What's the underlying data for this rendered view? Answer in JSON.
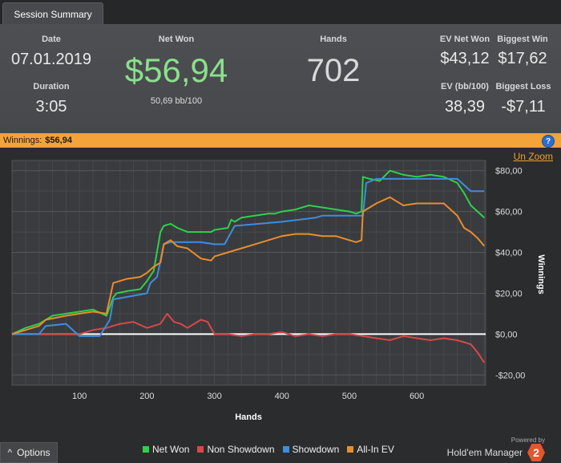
{
  "tab": {
    "label": "Session Summary"
  },
  "summary": {
    "date_label": "Date",
    "date": "07.01.2019",
    "duration_label": "Duration",
    "duration": "3:05",
    "net_won_label": "Net Won",
    "net_won": "$56,94",
    "bb100": "50,69 bb/100",
    "hands_label": "Hands",
    "hands": "702",
    "ev_net_won_label": "EV Net Won",
    "ev_net_won": "$43,12",
    "biggest_win_label": "Biggest Win",
    "biggest_win": "$17,62",
    "ev_bb100_label": "EV (bb/100)",
    "ev_bb100": "38,39",
    "biggest_loss_label": "Biggest Loss",
    "biggest_loss": "-$7,11"
  },
  "banner": {
    "label": "Winnings:",
    "value": "$56,94",
    "help": "?"
  },
  "chart_controls": {
    "unzoom": "Un Zoom"
  },
  "chart_data": {
    "type": "line",
    "xlabel": "Hands",
    "ylabel": "Winnings",
    "xlim": [
      0,
      702
    ],
    "ylim": [
      -25,
      85
    ],
    "x_ticks": [
      100,
      200,
      300,
      400,
      500,
      600
    ],
    "y_ticks": [
      -20,
      0,
      20,
      40,
      60,
      80
    ],
    "y_tick_labels": [
      "-$20,00",
      "$0,00",
      "$20,00",
      "$40,00",
      "$60,00",
      "$80,00"
    ],
    "grid": true,
    "series": [
      {
        "name": "Net Won",
        "color": "#2fd04a",
        "x": [
          0,
          20,
          40,
          60,
          80,
          100,
          120,
          140,
          150,
          155,
          170,
          190,
          200,
          210,
          220,
          225,
          235,
          245,
          260,
          280,
          295,
          300,
          320,
          325,
          330,
          340,
          360,
          380,
          390,
          400,
          420,
          440,
          460,
          480,
          500,
          510,
          518,
          520,
          530,
          545,
          560,
          580,
          600,
          620,
          640,
          660,
          670,
          680,
          690,
          700
        ],
        "y": [
          0,
          3,
          5,
          9,
          10,
          11,
          12,
          9,
          18,
          20,
          21,
          22,
          26,
          31,
          50,
          53,
          54,
          52,
          50,
          50,
          50,
          51,
          52,
          56,
          55,
          57,
          58,
          59,
          59,
          60,
          61,
          63,
          62,
          61,
          60,
          59,
          60,
          77,
          76,
          75,
          80,
          78,
          77,
          78,
          77,
          74,
          69,
          63,
          60,
          56.94
        ]
      },
      {
        "name": "Non Showdown",
        "color": "#d84848",
        "x": [
          0,
          50,
          100,
          120,
          140,
          160,
          180,
          200,
          220,
          230,
          240,
          250,
          260,
          280,
          290,
          300,
          320,
          340,
          360,
          380,
          400,
          420,
          440,
          460,
          480,
          500,
          520,
          540,
          560,
          580,
          600,
          620,
          640,
          660,
          680,
          690,
          700
        ],
        "y": [
          0,
          0,
          0,
          2,
          3,
          5,
          6,
          3,
          5,
          10,
          6,
          5,
          3,
          7,
          6,
          0,
          0,
          -1,
          0,
          0,
          1,
          -1,
          0,
          -1,
          0,
          0,
          -1,
          -2,
          -3,
          -1,
          -2,
          -3,
          -2,
          -3,
          -5,
          -9,
          -14
        ]
      },
      {
        "name": "Showdown",
        "color": "#3b8ee0",
        "x": [
          0,
          40,
          50,
          80,
          100,
          130,
          145,
          150,
          200,
          205,
          215,
          225,
          235,
          260,
          280,
          300,
          315,
          330,
          400,
          450,
          460,
          520,
          525,
          540,
          560,
          600,
          640,
          660,
          680,
          700
        ],
        "y": [
          0,
          0,
          4,
          5,
          -1,
          -1,
          7,
          17,
          20,
          25,
          28,
          44,
          45,
          45,
          45,
          44,
          44,
          53,
          55,
          57,
          58,
          58,
          74,
          76,
          76,
          76,
          76,
          76,
          70,
          70
        ]
      },
      {
        "name": "All-In EV",
        "color": "#e98d2c",
        "x": [
          0,
          40,
          50,
          80,
          100,
          120,
          140,
          150,
          170,
          190,
          200,
          210,
          220,
          225,
          235,
          245,
          260,
          280,
          295,
          300,
          320,
          340,
          360,
          380,
          400,
          420,
          440,
          460,
          480,
          500,
          510,
          518,
          520,
          540,
          560,
          580,
          600,
          620,
          640,
          660,
          670,
          680,
          690,
          700
        ],
        "y": [
          0,
          4,
          7,
          9,
          10,
          11,
          10,
          25,
          27,
          28,
          30,
          33,
          35,
          44,
          46,
          43,
          42,
          37,
          36,
          38,
          40,
          42,
          44,
          46,
          48,
          49,
          49,
          48,
          48,
          46,
          45,
          46,
          60,
          64,
          67,
          63,
          64,
          64,
          64,
          58,
          52,
          50,
          47,
          43.12
        ]
      }
    ]
  },
  "footer": {
    "options_label": "Options",
    "options_icon": "caret-up-icon",
    "legend": [
      "Net Won",
      "Non Showdown",
      "Showdown",
      "All-In EV"
    ],
    "legend_colors": [
      "#2fd04a",
      "#d84848",
      "#3b8ee0",
      "#e98d2c"
    ],
    "powered_by": "Powered by",
    "brand": "Hold'em Manager",
    "brand_badge": "2"
  }
}
